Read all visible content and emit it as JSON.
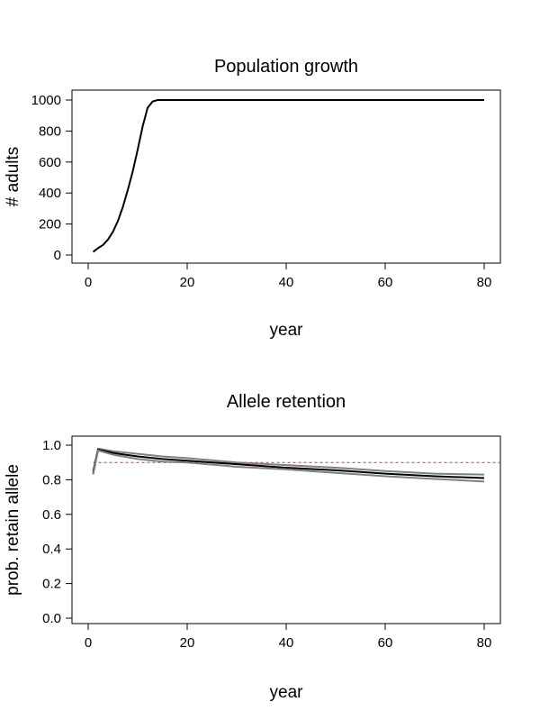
{
  "chart_data": [
    {
      "type": "line",
      "title": "Population growth",
      "xlabel": "year",
      "ylabel": "# adults",
      "xlim": [
        1,
        80
      ],
      "ylim": [
        0,
        1000
      ],
      "xticks": [
        0,
        20,
        40,
        60,
        80
      ],
      "yticks": [
        0,
        200,
        400,
        600,
        800,
        1000
      ],
      "grid": false,
      "series": [
        {
          "color": "#000000",
          "x": [
            1,
            2,
            3,
            4,
            5,
            6,
            7,
            8,
            9,
            10,
            11,
            12,
            13,
            14,
            15,
            80
          ],
          "y": [
            20,
            45,
            65,
            100,
            150,
            220,
            310,
            420,
            540,
            680,
            830,
            950,
            990,
            1000,
            1000,
            1000
          ]
        }
      ]
    },
    {
      "type": "line",
      "title": "Allele retention",
      "xlabel": "year",
      "ylabel": "prob. retain allele",
      "xlim": [
        1,
        80
      ],
      "ylim": [
        0,
        1
      ],
      "xticks": [
        0,
        20,
        40,
        60,
        80
      ],
      "yticks": [
        0.0,
        0.2,
        0.4,
        0.6,
        0.8,
        1.0
      ],
      "grid": false,
      "reference_line": {
        "y": 0.9,
        "color": "#cc3333",
        "style": "dashed"
      },
      "series": [
        {
          "color": "#808080",
          "x": [
            1,
            2,
            5,
            10,
            15,
            20,
            30,
            40,
            50,
            60,
            70,
            80
          ],
          "y": [
            0.85,
            0.98,
            0.965,
            0.95,
            0.935,
            0.925,
            0.9,
            0.885,
            0.87,
            0.85,
            0.835,
            0.83
          ]
        },
        {
          "color": "#000000",
          "x": [
            1,
            2,
            5,
            10,
            15,
            20,
            30,
            40,
            50,
            60,
            70,
            80
          ],
          "y": [
            0.84,
            0.975,
            0.955,
            0.935,
            0.92,
            0.91,
            0.89,
            0.87,
            0.855,
            0.835,
            0.82,
            0.81
          ]
        },
        {
          "color": "#808080",
          "x": [
            1,
            2,
            5,
            10,
            15,
            20,
            30,
            40,
            50,
            60,
            70,
            80
          ],
          "y": [
            0.83,
            0.97,
            0.945,
            0.92,
            0.905,
            0.9,
            0.875,
            0.86,
            0.84,
            0.82,
            0.805,
            0.79
          ]
        }
      ]
    }
  ]
}
